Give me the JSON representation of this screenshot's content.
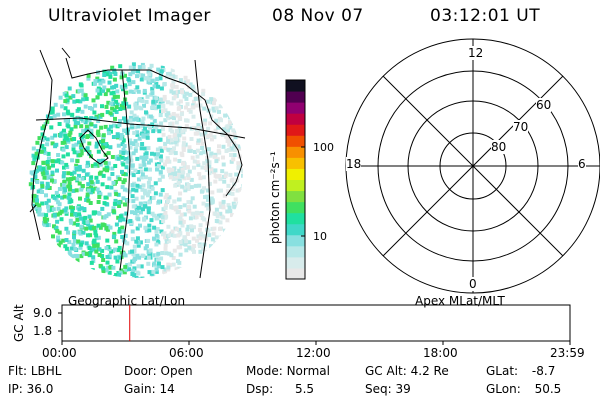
{
  "header": {
    "instrument": "Ultraviolet Imager",
    "date": "08 Nov 07",
    "time": "03:12:01 UT"
  },
  "colorbar": {
    "label": "photon cm⁻²s⁻¹",
    "ticks": [
      {
        "label": "100",
        "value": 100
      },
      {
        "label": "10",
        "value": 10
      }
    ],
    "colors": [
      "#e8e8e8",
      "#d8ecec",
      "#b8e8e8",
      "#88e0e0",
      "#40d8c8",
      "#20e0a0",
      "#40e060",
      "#80e040",
      "#c0f020",
      "#f0f000",
      "#f8c000",
      "#f89000",
      "#f05000",
      "#e01818",
      "#c00040",
      "#900070",
      "#500050",
      "#101020"
    ]
  },
  "left_panel": {
    "caption": "Geographic Lat/Lon"
  },
  "right_panel": {
    "caption": "Apex MLat/MLT",
    "mlt_labels": {
      "top": "12",
      "left": "18",
      "right": "6",
      "bottom": "0"
    },
    "lat_labels": [
      "60",
      "70",
      "80"
    ]
  },
  "altitude_plot": {
    "ylabel": "GC Alt",
    "y_ticks": [
      "9.0",
      "1.8"
    ],
    "y_values": [
      9.0,
      1.8
    ],
    "x_ticks": [
      "00:00",
      "06:00",
      "12:00",
      "18:00",
      "23:59"
    ],
    "current_time_hours": 3.2
  },
  "status": [
    {
      "key": "Flt:",
      "value": "LBHL"
    },
    {
      "key": "Door:",
      "value": "Open"
    },
    {
      "key": "Mode:",
      "value": "Normal"
    },
    {
      "key": "GC Alt:",
      "value": "4.2 Re"
    },
    {
      "key": "GLat:",
      "value": "-8.7"
    },
    {
      "key": "IP:",
      "value": "36.0"
    },
    {
      "key": "Gain:",
      "value": "14"
    },
    {
      "key": "Dsp:",
      "value": "5.5"
    },
    {
      "key": "Seq:",
      "value": "39"
    },
    {
      "key": "GLon:",
      "value": "50.5"
    }
  ]
}
